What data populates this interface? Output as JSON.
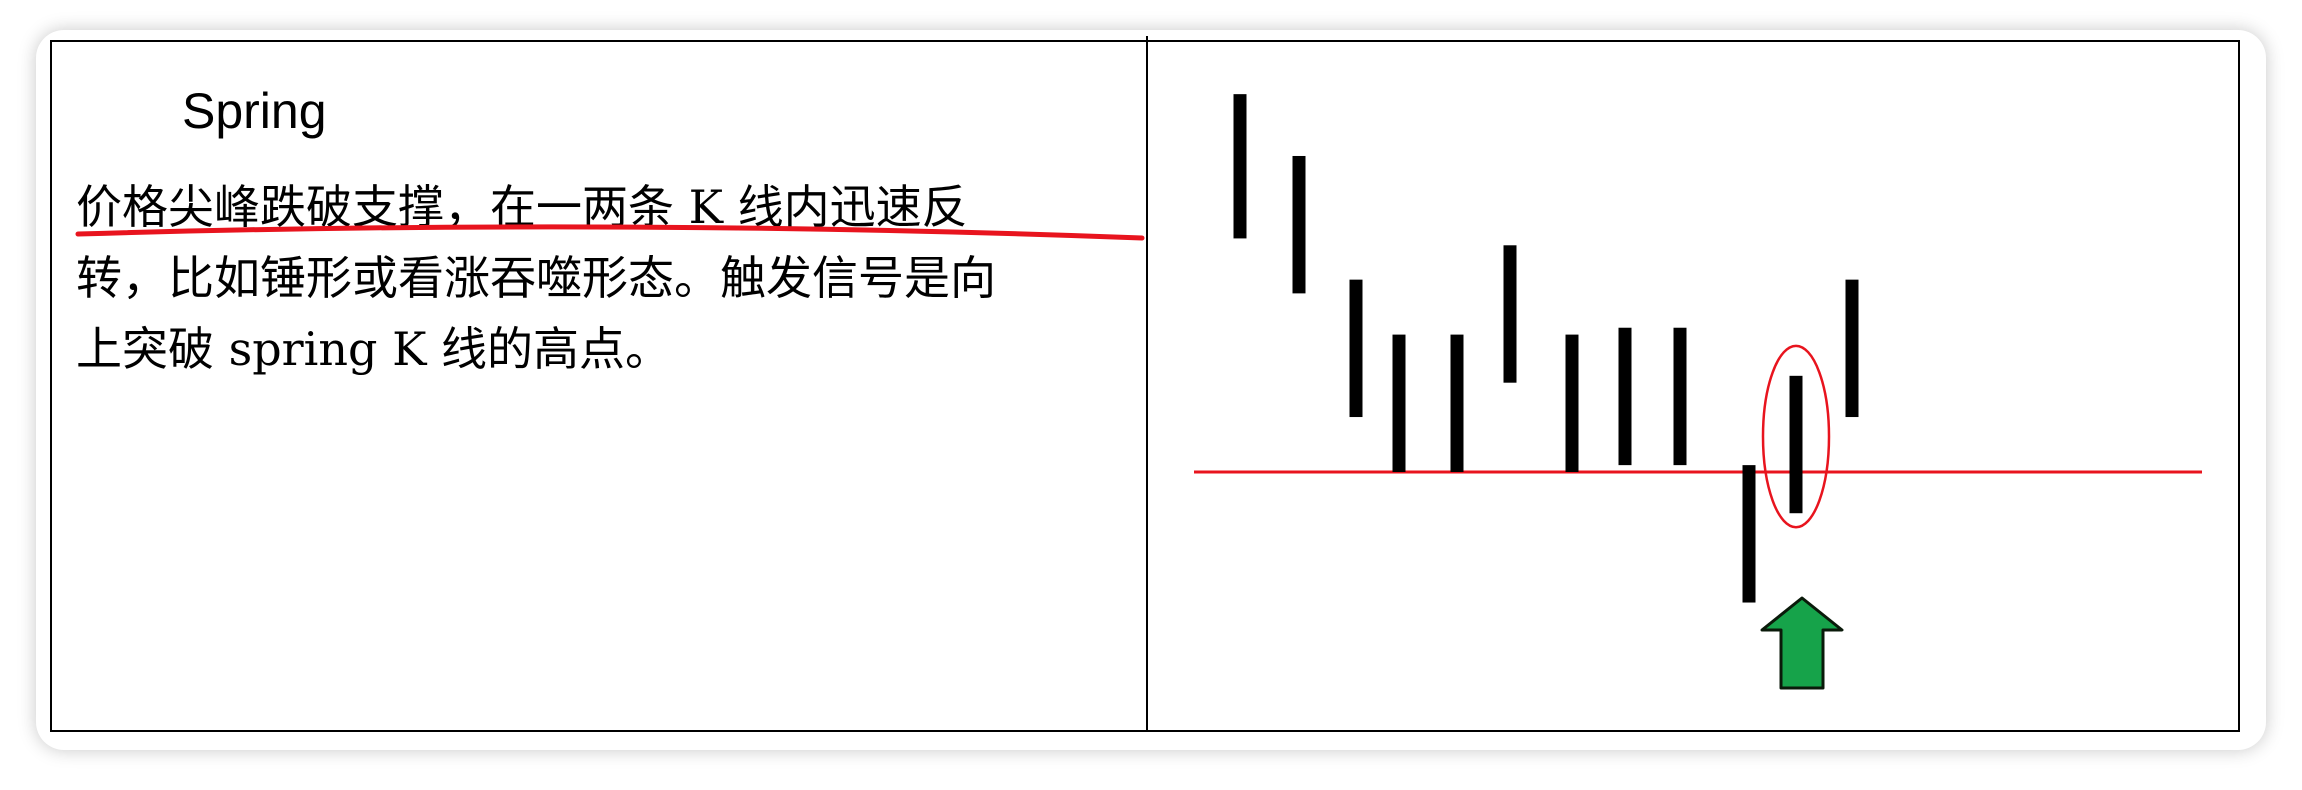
{
  "left": {
    "title": "Spring",
    "lines": [
      "价格尖峰跌破支撑，在一两条 K 线内迅速反",
      "转，比如锤形或看涨吞噬形态。触发信号是向",
      "上突破 spring K 线的高点。"
    ]
  },
  "chart_data": {
    "type": "bar",
    "bars": [
      {
        "high": 10.0,
        "low": 7.9
      },
      {
        "high": 9.1,
        "low": 7.1
      },
      {
        "high": 7.3,
        "low": 5.3
      },
      {
        "high": 6.5,
        "low": 4.5
      },
      {
        "high": 6.5,
        "low": 4.5
      },
      {
        "high": 7.8,
        "low": 5.8
      },
      {
        "high": 6.5,
        "low": 4.5
      },
      {
        "high": 6.6,
        "low": 4.6
      },
      {
        "high": 6.6,
        "low": 4.6
      },
      {
        "high": 4.6,
        "low": 2.6
      },
      {
        "high": 5.9,
        "low": 3.9
      },
      {
        "high": 7.3,
        "low": 5.3
      }
    ],
    "support_level": 4.5,
    "highlighted_bar": 10,
    "arrow_under_bar": 10,
    "colors": {
      "bar": "#000000",
      "support_line": "#e8141e",
      "highlight_ellipse": "#e8141e",
      "arrow_fill": "#16a34a",
      "arrow_stroke": "#0a1a0a",
      "underline": "#e8141e"
    }
  }
}
